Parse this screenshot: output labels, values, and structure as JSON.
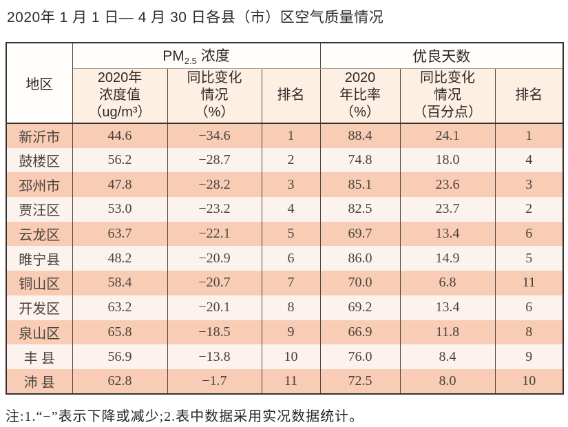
{
  "colors": {
    "row_odd": "#f8ccb5",
    "row_even": "#fdf3ee",
    "header_bg": "#fdf0e3",
    "border_dark": "#38322e",
    "border_inner": "#51463f",
    "accent_salmon": "#f8ccb5"
  },
  "chart_data": {
    "type": "table",
    "title": "2020年 1 月 1 日— 4 月 30 日各县（市）区空气质量情况",
    "note": "注:1.“−”表示下降或减少;2.表中数据采用实况数据统计。",
    "column_groups": [
      "PM2.5 浓度",
      "优良天数"
    ],
    "headers": {
      "region": "地区",
      "pm_group_prefix": "PM",
      "pm_group_sub": "2.5",
      "pm_group_suffix": " 浓度",
      "days_group": "优良天数",
      "pm_value": "2020年\n浓度值\n（ug/m³）",
      "pm_change": "同比变化\n情况\n（%）",
      "pm_rank": "排名",
      "days_rate": "2020\n年比率\n（%）",
      "days_change": "同比变化\n情况\n（百分点）",
      "days_rank": "排名"
    },
    "rows": [
      {
        "region": "新沂市",
        "pm_value": "44.6",
        "pm_change": "−34.6",
        "pm_rank": "1",
        "days_rate": "88.4",
        "days_change": "24.1",
        "days_rank": "1"
      },
      {
        "region": "鼓楼区",
        "pm_value": "56.2",
        "pm_change": "−28.7",
        "pm_rank": "2",
        "days_rate": "74.8",
        "days_change": "18.0",
        "days_rank": "4"
      },
      {
        "region": "邳州市",
        "pm_value": "47.8",
        "pm_change": "−28.2",
        "pm_rank": "3",
        "days_rate": "85.1",
        "days_change": "23.6",
        "days_rank": "3"
      },
      {
        "region": "贾汪区",
        "pm_value": "53.0",
        "pm_change": "−23.2",
        "pm_rank": "4",
        "days_rate": "82.5",
        "days_change": "23.7",
        "days_rank": "2"
      },
      {
        "region": "云龙区",
        "pm_value": "63.7",
        "pm_change": "−22.1",
        "pm_rank": "5",
        "days_rate": "69.7",
        "days_change": "13.4",
        "days_rank": "6"
      },
      {
        "region": "睢宁县",
        "pm_value": "48.2",
        "pm_change": "−20.9",
        "pm_rank": "6",
        "days_rate": "86.0",
        "days_change": "14.9",
        "days_rank": "5"
      },
      {
        "region": "铜山区",
        "pm_value": "58.4",
        "pm_change": "−20.7",
        "pm_rank": "7",
        "days_rate": "70.0",
        "days_change": "6.8",
        "days_rank": "11"
      },
      {
        "region": "开发区",
        "pm_value": "63.2",
        "pm_change": "−20.1",
        "pm_rank": "8",
        "days_rate": "69.2",
        "days_change": "13.4",
        "days_rank": "6"
      },
      {
        "region": "泉山区",
        "pm_value": "65.8",
        "pm_change": "−18.5",
        "pm_rank": "9",
        "days_rate": "66.9",
        "days_change": "11.8",
        "days_rank": "8"
      },
      {
        "region": "丰 县",
        "pm_value": "56.9",
        "pm_change": "−13.8",
        "pm_rank": "10",
        "days_rate": "76.0",
        "days_change": "8.4",
        "days_rank": "9"
      },
      {
        "region": "沛 县",
        "pm_value": "62.8",
        "pm_change": "−1.7",
        "pm_rank": "11",
        "days_rate": "72.5",
        "days_change": "8.0",
        "days_rank": "10"
      }
    ]
  }
}
